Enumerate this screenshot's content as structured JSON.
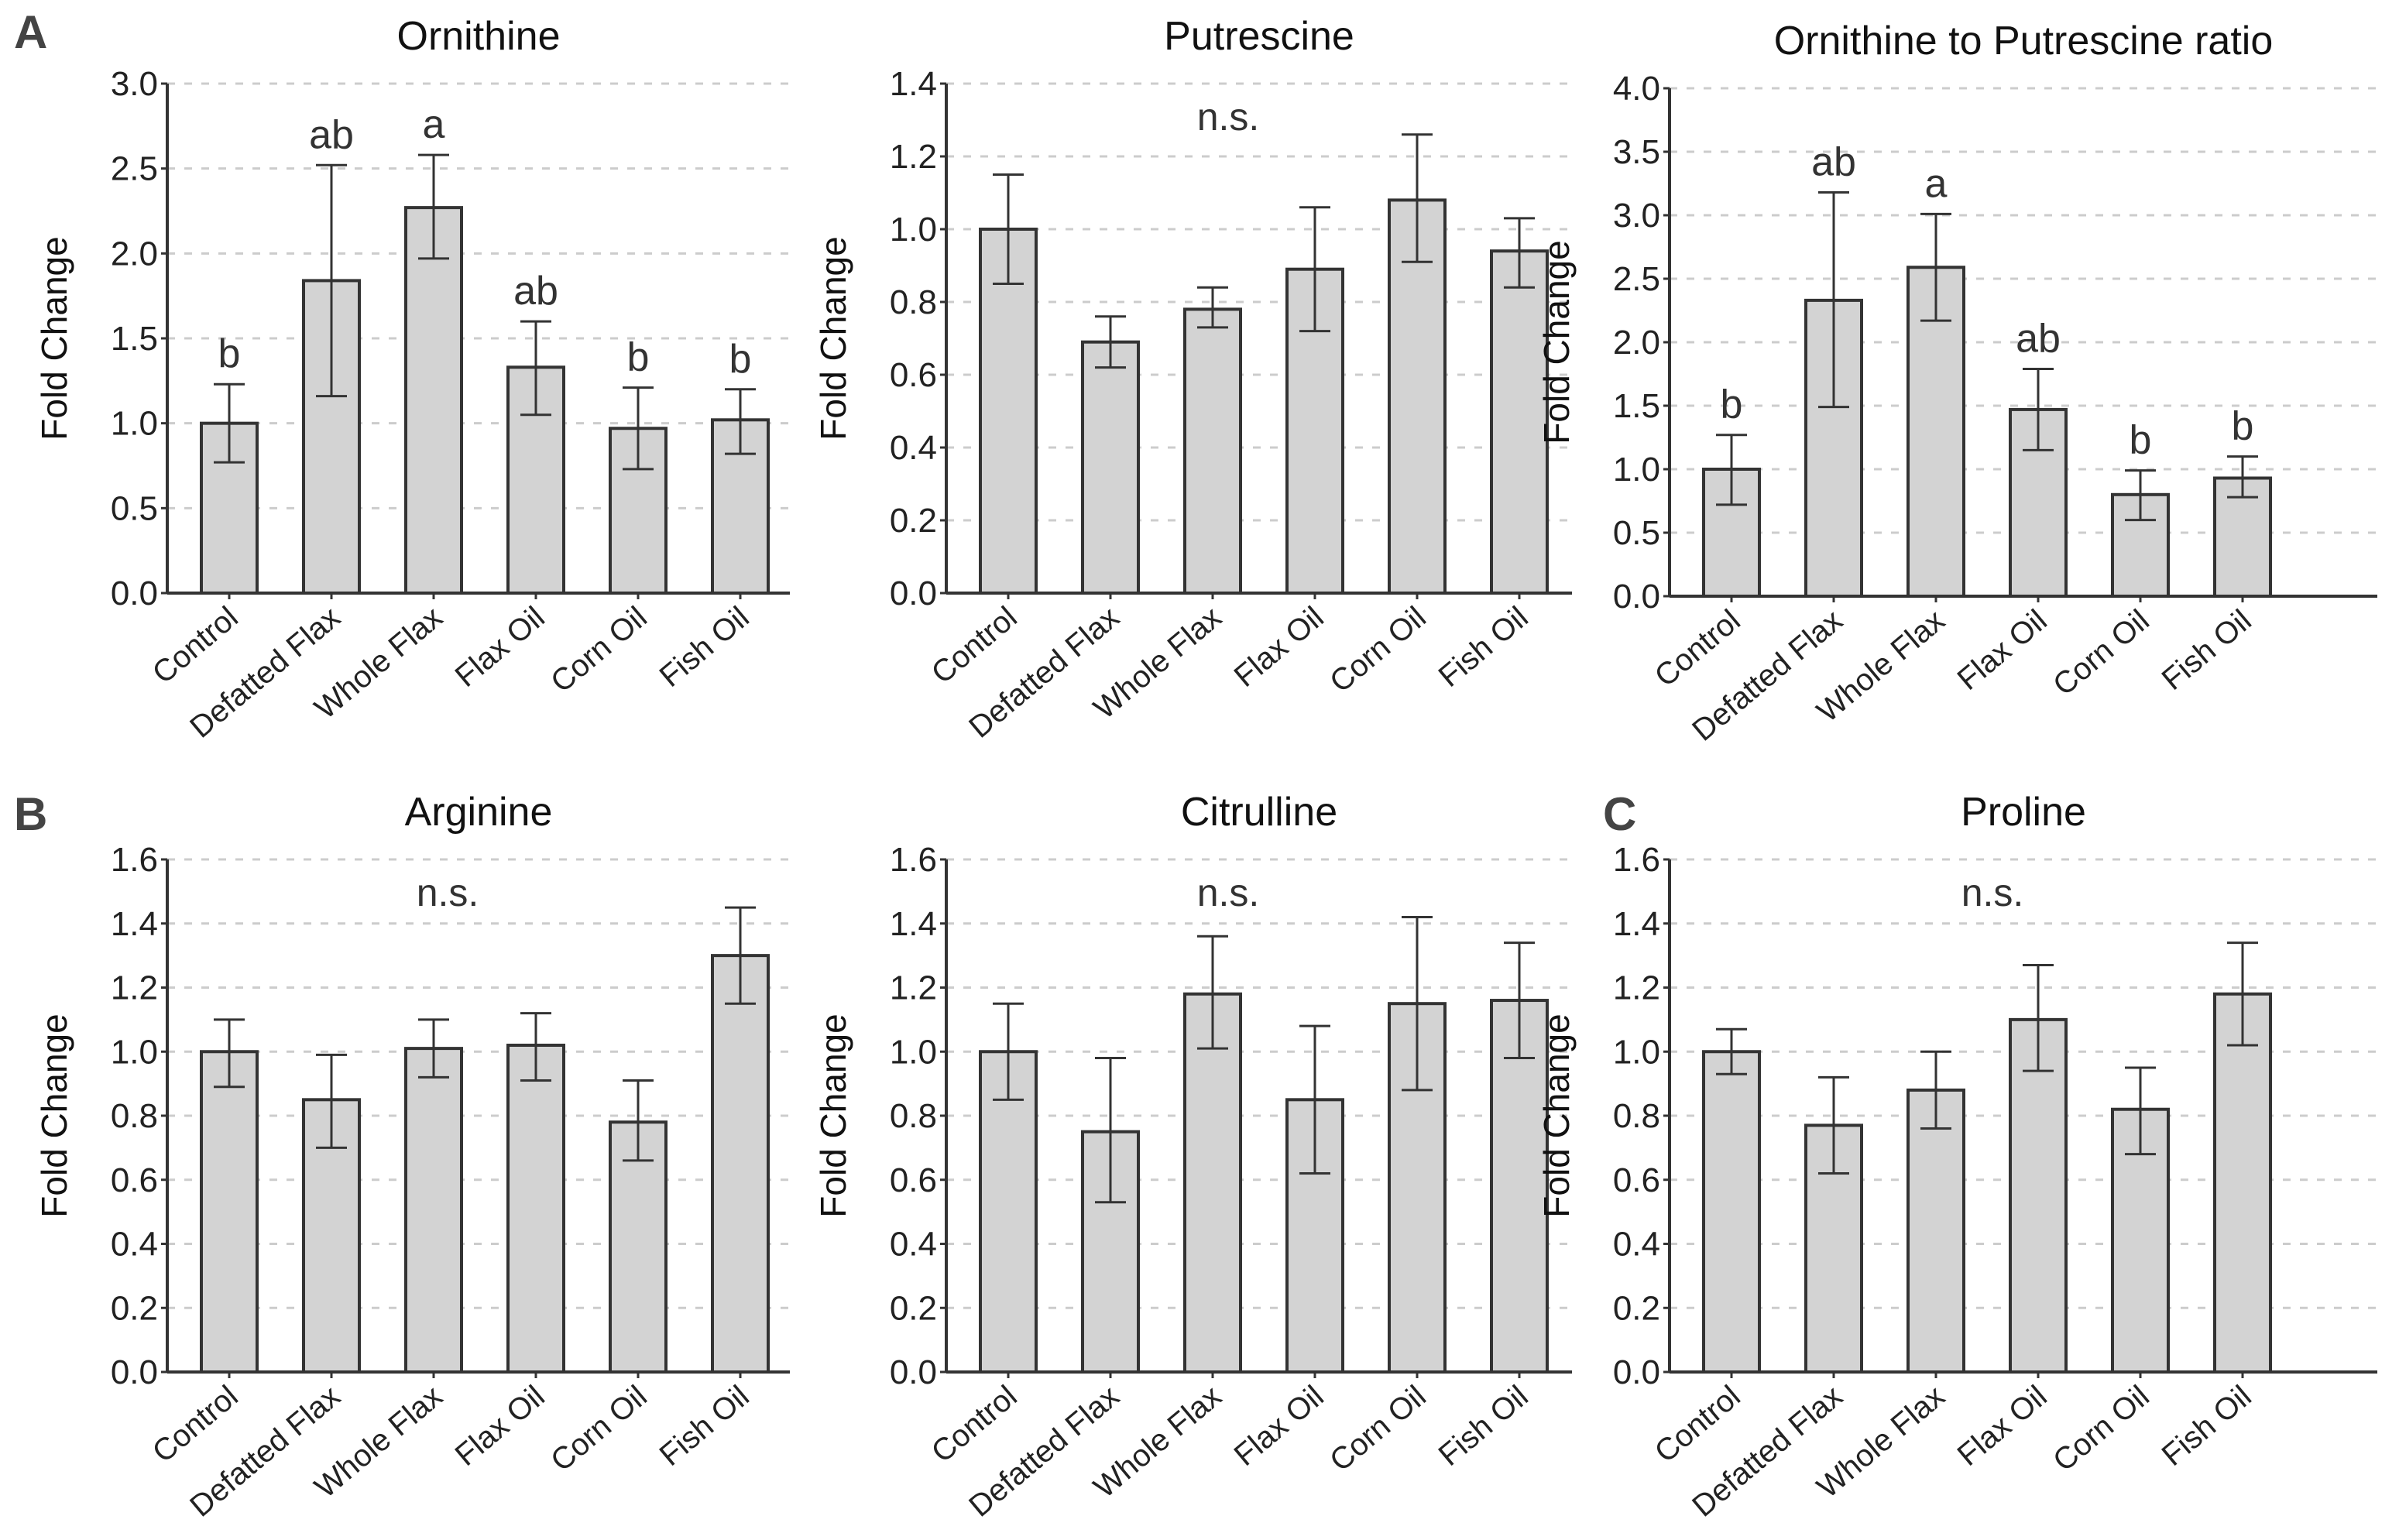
{
  "colors": {
    "bar_fill": "#d3d3d3",
    "bar_stroke": "#333333",
    "grid": "#cccccc",
    "text": "#222222"
  },
  "panel_letters": [
    "A",
    "B",
    "C"
  ],
  "chart_data": [
    {
      "type": "bar",
      "panel": "A",
      "title": "Ornithine",
      "ylabel": "Fold Change",
      "xlabel": "",
      "categories": [
        "Control",
        "Defatted Flax",
        "Whole Flax",
        "Flax Oil",
        "Corn Oil",
        "Fish Oil"
      ],
      "values": [
        1.0,
        1.84,
        2.27,
        1.33,
        0.97,
        1.02
      ],
      "error_upper": [
        1.23,
        2.52,
        2.58,
        1.6,
        1.21,
        1.2
      ],
      "error_lower": [
        0.77,
        1.16,
        1.97,
        1.05,
        0.73,
        0.82
      ],
      "annotations": [
        "b",
        "ab",
        "a",
        "ab",
        "b",
        "b"
      ],
      "ylim": [
        0,
        3.0
      ],
      "yticks": [
        "0.0",
        "0.5",
        "1.0",
        "1.5",
        "2.0",
        "2.5",
        "3.0"
      ],
      "grid": true
    },
    {
      "type": "bar",
      "panel": "A",
      "title": "Putrescine",
      "ylabel": "Fold Change",
      "xlabel": "",
      "categories": [
        "Control",
        "Defatted Flax",
        "Whole Flax",
        "Flax Oil",
        "Corn Oil",
        "Fish Oil"
      ],
      "values": [
        1.0,
        0.69,
        0.78,
        0.89,
        1.08,
        0.94
      ],
      "error_upper": [
        1.15,
        0.76,
        0.84,
        1.06,
        1.26,
        1.03
      ],
      "error_lower": [
        0.85,
        0.62,
        0.73,
        0.72,
        0.91,
        0.84
      ],
      "note": "n.s.",
      "ylim": [
        0,
        1.4
      ],
      "yticks": [
        "0.0",
        "0.2",
        "0.4",
        "0.6",
        "0.8",
        "1.0",
        "1.2",
        "1.4"
      ],
      "grid": true
    },
    {
      "type": "bar",
      "panel": "A",
      "title": "Ornithine to Putrescine ratio",
      "ylabel": "Fold Change",
      "xlabel": "",
      "categories": [
        "Control",
        "Defatted Flax",
        "Whole Flax",
        "Flax Oil",
        "Corn Oil",
        "Fish Oil"
      ],
      "values": [
        1.0,
        2.33,
        2.59,
        1.47,
        0.8,
        0.93
      ],
      "error_upper": [
        1.27,
        3.18,
        3.01,
        1.79,
        0.99,
        1.1
      ],
      "error_lower": [
        0.72,
        1.49,
        2.17,
        1.15,
        0.6,
        0.78
      ],
      "annotations": [
        "b",
        "ab",
        "a",
        "ab",
        "b",
        "b"
      ],
      "ylim": [
        0,
        4.0
      ],
      "yticks": [
        "0.0",
        "0.5",
        "1.0",
        "1.5",
        "2.0",
        "2.5",
        "3.0",
        "3.5",
        "4.0"
      ],
      "grid": true
    },
    {
      "type": "bar",
      "panel": "B",
      "title": "Arginine",
      "ylabel": "Fold Change",
      "xlabel": "",
      "categories": [
        "Control",
        "Defatted Flax",
        "Whole Flax",
        "Flax Oil",
        "Corn Oil",
        "Fish Oil"
      ],
      "values": [
        1.0,
        0.85,
        1.01,
        1.02,
        0.78,
        1.3
      ],
      "error_upper": [
        1.1,
        0.99,
        1.1,
        1.12,
        0.91,
        1.45
      ],
      "error_lower": [
        0.89,
        0.7,
        0.92,
        0.91,
        0.66,
        1.15
      ],
      "note": "n.s.",
      "ylim": [
        0,
        1.6
      ],
      "yticks": [
        "0.0",
        "0.2",
        "0.4",
        "0.6",
        "0.8",
        "1.0",
        "1.2",
        "1.4",
        "1.6"
      ],
      "grid": true
    },
    {
      "type": "bar",
      "panel": "B",
      "title": "Citrulline",
      "ylabel": "Fold Change",
      "xlabel": "",
      "categories": [
        "Control",
        "Defatted Flax",
        "Whole Flax",
        "Flax Oil",
        "Corn Oil",
        "Fish Oil"
      ],
      "values": [
        1.0,
        0.75,
        1.18,
        0.85,
        1.15,
        1.16
      ],
      "error_upper": [
        1.15,
        0.98,
        1.36,
        1.08,
        1.42,
        1.34
      ],
      "error_lower": [
        0.85,
        0.53,
        1.01,
        0.62,
        0.88,
        0.98
      ],
      "note": "n.s.",
      "ylim": [
        0,
        1.6
      ],
      "yticks": [
        "0.0",
        "0.2",
        "0.4",
        "0.6",
        "0.8",
        "1.0",
        "1.2",
        "1.4",
        "1.6"
      ],
      "grid": true
    },
    {
      "type": "bar",
      "panel": "C",
      "title": "Proline",
      "ylabel": "Fold Change",
      "xlabel": "",
      "categories": [
        "Control",
        "Defatted Flax",
        "Whole Flax",
        "Flax Oil",
        "Corn Oil",
        "Fish Oil"
      ],
      "values": [
        1.0,
        0.77,
        0.88,
        1.1,
        0.82,
        1.18
      ],
      "error_upper": [
        1.07,
        0.92,
        1.0,
        1.27,
        0.95,
        1.34
      ],
      "error_lower": [
        0.93,
        0.62,
        0.76,
        0.94,
        0.68,
        1.02
      ],
      "note": "n.s.",
      "ylim": [
        0,
        1.6
      ],
      "yticks": [
        "0.0",
        "0.2",
        "0.4",
        "0.6",
        "0.8",
        "1.0",
        "1.2",
        "1.4",
        "1.6"
      ],
      "grid": true
    }
  ]
}
